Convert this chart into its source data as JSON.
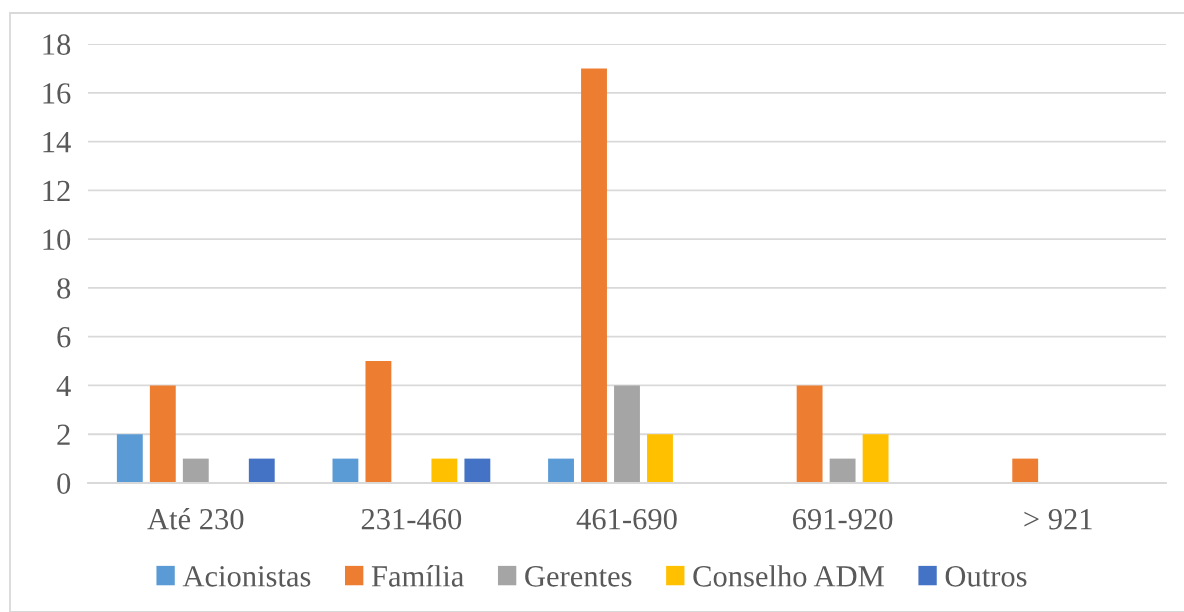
{
  "chart_data": {
    "type": "bar",
    "categories": [
      "Até 230",
      "231-460",
      "461-690",
      "691-920",
      "> 921"
    ],
    "series": [
      {
        "name": "Acionistas",
        "color": "#5b9bd5",
        "values": [
          2,
          1,
          1,
          0,
          0
        ]
      },
      {
        "name": "Família",
        "color": "#ed7d31",
        "values": [
          4,
          5,
          17,
          4,
          1
        ]
      },
      {
        "name": "Gerentes",
        "color": "#a5a5a5",
        "values": [
          1,
          0,
          4,
          1,
          0
        ]
      },
      {
        "name": "Conselho ADM",
        "color": "#ffc000",
        "values": [
          0,
          1,
          2,
          2,
          0
        ]
      },
      {
        "name": "Outros",
        "color": "#4472c4",
        "values": [
          1,
          1,
          0,
          0,
          0
        ]
      }
    ],
    "ylim": [
      0,
      18
    ],
    "yticks": [
      0,
      2,
      4,
      6,
      8,
      10,
      12,
      14,
      16,
      18
    ],
    "grid": "y",
    "legend": "bottom"
  }
}
